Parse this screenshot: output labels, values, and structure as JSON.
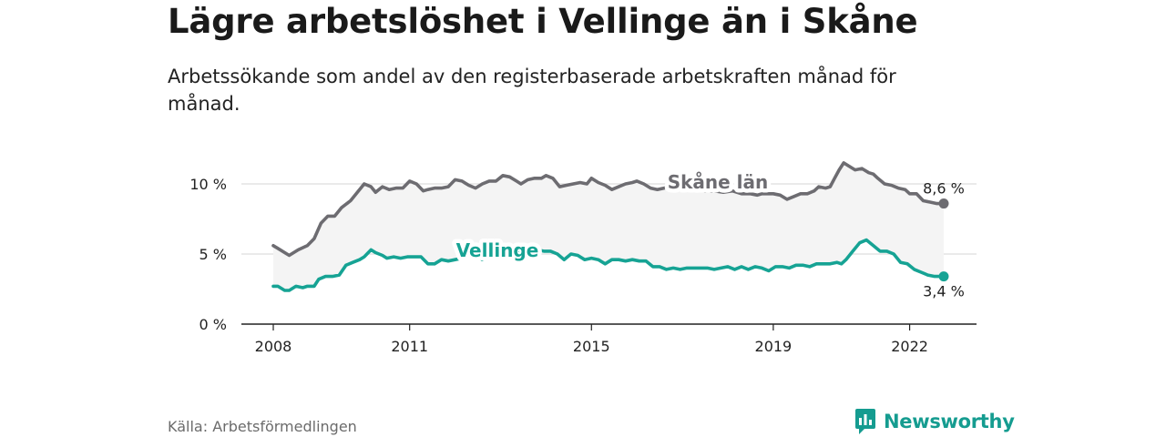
{
  "header": {
    "title": "Lägre arbetslöshet i Vellinge än i Skåne",
    "subtitle": "Arbetssökande som andel av den registerbaserade arbetskraften månad för månad."
  },
  "footer": {
    "source": "Källa: Arbetsförmedlingen",
    "brand": "Newsworthy"
  },
  "colors": {
    "skane": "#6d6c71",
    "vellinge": "#16a394",
    "band": "#f4f4f4",
    "grid": "#dddddd",
    "axis": "#222222"
  },
  "chart_data": {
    "type": "line",
    "title": "Lägre arbetslöshet i Vellinge än i Skåne",
    "xlabel": "",
    "ylabel": "",
    "x_range": [
      2008.0,
      2022.75
    ],
    "ylim": [
      0,
      12.5
    ],
    "x_ticks": [
      2008,
      2011,
      2015,
      2019,
      2022
    ],
    "y_ticks": [
      0,
      5,
      10
    ],
    "y_tick_labels": [
      "0 %",
      "5 %",
      "10 %"
    ],
    "shaded_band": "area between Skåne län and Vellinge",
    "series": [
      {
        "name": "Skåne län",
        "color": "#6d6c71",
        "end_label": "8,6 %",
        "x": [
          2008.0,
          2008.1,
          2008.3,
          2008.35,
          2008.55,
          2008.75,
          2008.9,
          2009.05,
          2009.2,
          2009.35,
          2009.5,
          2009.7,
          2009.85,
          2010.0,
          2010.15,
          2010.25,
          2010.4,
          2010.55,
          2010.7,
          2010.85,
          2011.0,
          2011.15,
          2011.3,
          2011.4,
          2011.55,
          2011.7,
          2011.85,
          2012.0,
          2012.15,
          2012.3,
          2012.45,
          2012.6,
          2012.75,
          2012.9,
          2013.05,
          2013.2,
          2013.35,
          2013.45,
          2013.6,
          2013.75,
          2013.9,
          2014.0,
          2014.15,
          2014.3,
          2014.45,
          2014.6,
          2014.75,
          2014.9,
          2015.0,
          2015.15,
          2015.3,
          2015.45,
          2015.6,
          2015.75,
          2015.9,
          2016.0,
          2016.15,
          2016.3,
          2016.45,
          2016.6,
          2016.75,
          2016.9,
          2017.1,
          2017.3,
          2017.5,
          2017.7,
          2017.9,
          2018.1,
          2018.3,
          2018.5,
          2018.65,
          2018.75,
          2018.9,
          2019.0,
          2019.15,
          2019.3,
          2019.45,
          2019.6,
          2019.75,
          2019.9,
          2020.0,
          2020.15,
          2020.25,
          2020.35,
          2020.45,
          2020.55,
          2020.65,
          2020.8,
          2020.95,
          2021.1,
          2021.2,
          2021.3,
          2021.45,
          2021.6,
          2021.75,
          2021.9,
          2022.0,
          2022.15,
          2022.3,
          2022.45,
          2022.6,
          2022.75
        ],
        "y": [
          5.6,
          5.4,
          5.0,
          4.9,
          5.3,
          5.6,
          6.1,
          7.2,
          7.7,
          7.7,
          8.3,
          8.8,
          9.4,
          10.0,
          9.8,
          9.4,
          9.8,
          9.6,
          9.7,
          9.7,
          10.2,
          10.0,
          9.5,
          9.6,
          9.7,
          9.7,
          9.8,
          10.3,
          10.2,
          9.9,
          9.7,
          10.0,
          10.2,
          10.2,
          10.6,
          10.5,
          10.2,
          10.0,
          10.3,
          10.4,
          10.4,
          10.6,
          10.4,
          9.8,
          9.9,
          10.0,
          10.1,
          10.0,
          10.4,
          10.1,
          9.9,
          9.6,
          9.8,
          10.0,
          10.1,
          10.2,
          10.0,
          9.7,
          9.6,
          9.7,
          9.8,
          9.9,
          9.7,
          9.6,
          9.5,
          9.5,
          9.4,
          9.5,
          9.3,
          9.3,
          9.2,
          9.3,
          9.3,
          9.3,
          9.2,
          8.9,
          9.1,
          9.3,
          9.3,
          9.5,
          9.8,
          9.7,
          9.8,
          10.4,
          11.0,
          11.5,
          11.3,
          11.0,
          11.1,
          10.8,
          10.7,
          10.4,
          10.0,
          9.9,
          9.7,
          9.6,
          9.3,
          9.3,
          8.8,
          8.7,
          8.6,
          8.6
        ]
      },
      {
        "name": "Vellinge",
        "color": "#16a394",
        "end_label": "3,4 %",
        "x": [
          2008.0,
          2008.1,
          2008.25,
          2008.35,
          2008.5,
          2008.65,
          2008.75,
          2008.9,
          2009.0,
          2009.15,
          2009.3,
          2009.45,
          2009.6,
          2009.75,
          2009.9,
          2010.0,
          2010.15,
          2010.25,
          2010.4,
          2010.5,
          2010.65,
          2010.8,
          2010.95,
          2011.1,
          2011.25,
          2011.4,
          2011.55,
          2011.7,
          2011.85,
          2012.0,
          2012.15,
          2012.3,
          2012.45,
          2012.6,
          2012.75,
          2012.9,
          2013.05,
          2013.2,
          2013.35,
          2013.5,
          2013.65,
          2013.8,
          2013.95,
          2014.1,
          2014.25,
          2014.4,
          2014.55,
          2014.7,
          2014.85,
          2015.0,
          2015.15,
          2015.3,
          2015.45,
          2015.6,
          2015.75,
          2015.9,
          2016.05,
          2016.2,
          2016.35,
          2016.5,
          2016.65,
          2016.8,
          2016.95,
          2017.1,
          2017.25,
          2017.4,
          2017.55,
          2017.7,
          2017.85,
          2018.0,
          2018.15,
          2018.3,
          2018.45,
          2018.6,
          2018.75,
          2018.9,
          2019.05,
          2019.2,
          2019.35,
          2019.5,
          2019.65,
          2019.8,
          2019.95,
          2020.1,
          2020.25,
          2020.4,
          2020.5,
          2020.6,
          2020.75,
          2020.9,
          2021.05,
          2021.2,
          2021.35,
          2021.5,
          2021.65,
          2021.8,
          2021.95,
          2022.1,
          2022.25,
          2022.4,
          2022.55,
          2022.75
        ],
        "y": [
          2.7,
          2.7,
          2.4,
          2.4,
          2.7,
          2.6,
          2.7,
          2.7,
          3.2,
          3.4,
          3.4,
          3.5,
          4.2,
          4.4,
          4.6,
          4.8,
          5.3,
          5.1,
          4.9,
          4.7,
          4.8,
          4.7,
          4.8,
          4.8,
          4.8,
          4.3,
          4.3,
          4.6,
          4.5,
          4.6,
          4.7,
          4.9,
          5.0,
          4.6,
          4.8,
          4.9,
          5.0,
          5.1,
          5.3,
          5.2,
          5.2,
          5.3,
          5.2,
          5.2,
          5.0,
          4.6,
          5.0,
          4.9,
          4.6,
          4.7,
          4.6,
          4.3,
          4.6,
          4.6,
          4.5,
          4.6,
          4.5,
          4.5,
          4.1,
          4.1,
          3.9,
          4.0,
          3.9,
          4.0,
          4.0,
          4.0,
          4.0,
          3.9,
          4.0,
          4.1,
          3.9,
          4.1,
          3.9,
          4.1,
          4.0,
          3.8,
          4.1,
          4.1,
          4.0,
          4.2,
          4.2,
          4.1,
          4.3,
          4.3,
          4.3,
          4.4,
          4.3,
          4.6,
          5.2,
          5.8,
          6.0,
          5.6,
          5.2,
          5.2,
          5.0,
          4.4,
          4.3,
          3.9,
          3.7,
          3.5,
          3.4,
          3.4
        ]
      }
    ]
  }
}
